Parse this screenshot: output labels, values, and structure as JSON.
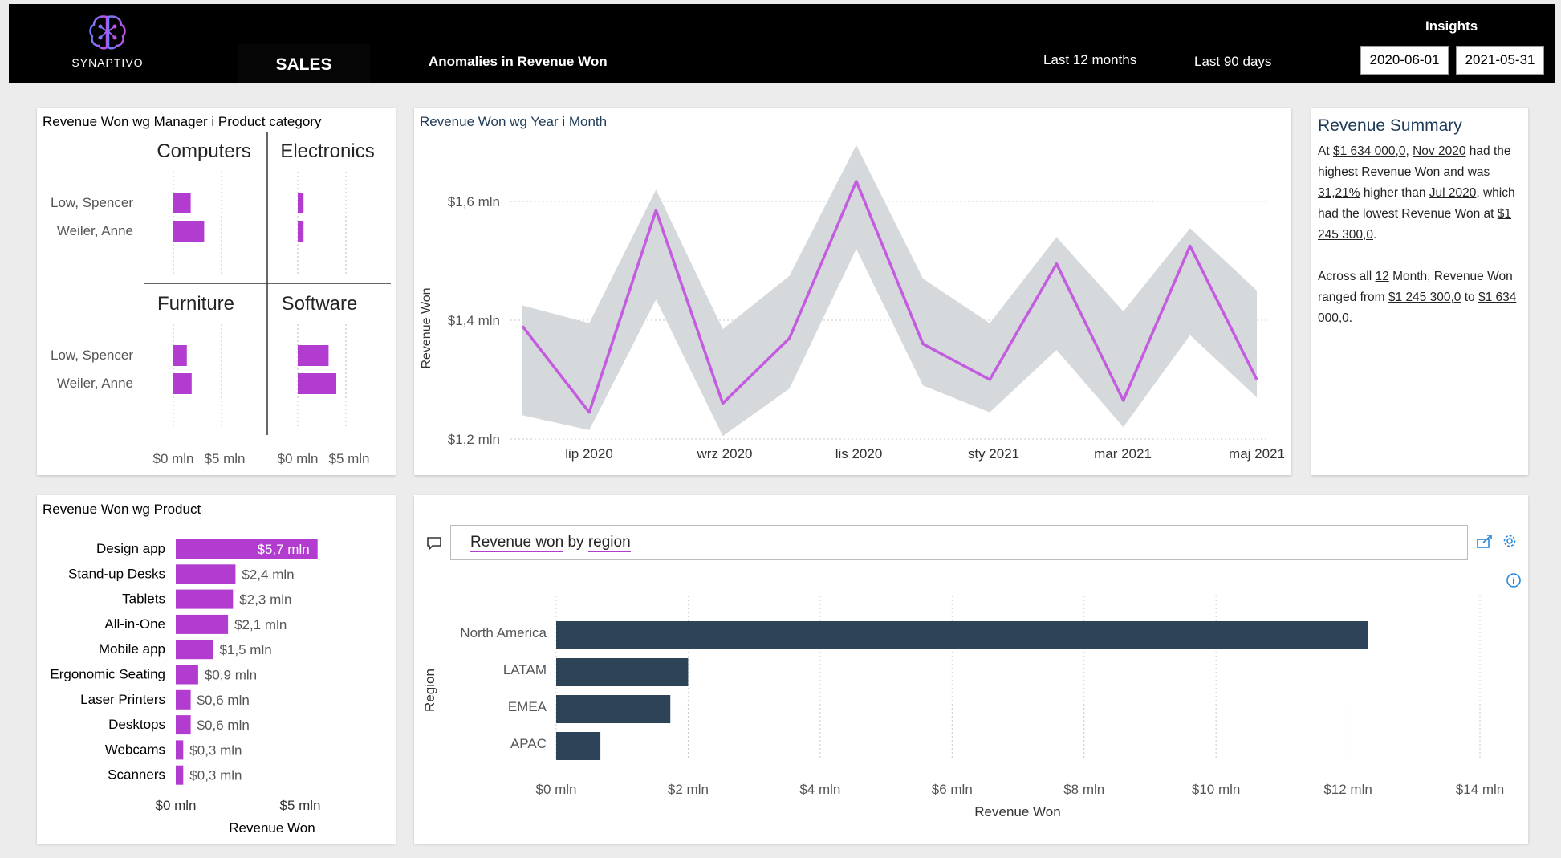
{
  "header": {
    "logo_text": "SYNAPTIVO",
    "tab_sales": "SALES",
    "tab_anomalies": "Anomalies in Revenue Won",
    "link_12m": "Last 12 months",
    "link_90d": "Last 90 days",
    "insights": "Insights",
    "date_from": "2020-06-01",
    "date_to": "2021-05-31"
  },
  "manager_panel": {
    "title": "Revenue Won wg Manager i Product category",
    "categories": [
      "Computers",
      "Electronics",
      "Furniture",
      "Software"
    ],
    "managers": [
      "Low, Spencer",
      "Weiler, Anne"
    ],
    "axis_ticks": [
      "$0 mln",
      "$5 mln"
    ]
  },
  "line_panel": {
    "title": "Revenue Won wg Year i Month",
    "ylabel": "Revenue Won",
    "y_ticks": [
      "$1,6 mln",
      "$1,4 mln",
      "$1,2 mln"
    ],
    "x_ticks": [
      "lip 2020",
      "wrz 2020",
      "lis 2020",
      "sty 2021",
      "mar 2021",
      "maj 2021"
    ]
  },
  "summary": {
    "title": "Revenue Summary",
    "at": "At",
    "max_value": "$1 634 000,0",
    "max_month": "Nov 2020",
    "had_highest": "had the highest Revenue Won and was",
    "pct": "31,21%",
    "higher_than": "higher than",
    "min_month": "Jul 2020",
    "which_had": ", which had the lowest Revenue Won at",
    "min_value": "$1 245 300,0",
    "across_all": "Across all",
    "count": "12",
    "month_ranged": "Month, Revenue Won ranged from",
    "range_from": "$1 245 300,0",
    "to": "to",
    "range_to": "$1 634 000,0"
  },
  "product_panel": {
    "title": "Revenue Won wg Product",
    "xlabel": "Revenue Won",
    "axis_ticks": [
      "$0 mln",
      "$5 mln"
    ]
  },
  "qa_panel": {
    "query_word1": "Revenue won",
    "query_word2": "by",
    "query_word3": "region",
    "ylabel": "Region",
    "xlabel": "Revenue Won"
  },
  "colors": {
    "accent": "#b23ccf",
    "line": "#c45ce0",
    "band": "#d6d9dc",
    "bar_dark": "#2d4358"
  },
  "chart_data": [
    {
      "type": "bar",
      "title": "Revenue Won wg Manager i Product category",
      "facets": [
        {
          "category": "Computers",
          "values": {
            "Low, Spencer": 1.8,
            "Weiler, Anne": 3.2
          }
        },
        {
          "category": "Electronics",
          "values": {
            "Low, Spencer": 0.6,
            "Weiler, Anne": 0.6
          }
        },
        {
          "category": "Furniture",
          "values": {
            "Low, Spencer": 1.4,
            "Weiler, Anne": 1.9
          }
        },
        {
          "category": "Software",
          "values": {
            "Low, Spencer": 3.2,
            "Weiler, Anne": 4.0
          }
        }
      ],
      "xlim": [
        0,
        6
      ]
    },
    {
      "type": "line",
      "title": "Revenue Won wg Year i Month",
      "ylabel": "Revenue Won",
      "x": [
        "2020-06",
        "2020-07",
        "2020-08",
        "2020-09",
        "2020-10",
        "2020-11",
        "2020-12",
        "2021-01",
        "2021-02",
        "2021-03",
        "2021-04",
        "2021-05"
      ],
      "values": [
        1.39,
        1.245,
        1.585,
        1.26,
        1.37,
        1.634,
        1.36,
        1.3,
        1.495,
        1.265,
        1.525,
        1.3
      ],
      "band_low": [
        1.24,
        1.215,
        1.435,
        1.205,
        1.285,
        1.52,
        1.29,
        1.245,
        1.35,
        1.22,
        1.375,
        1.27
      ],
      "band_high": [
        1.425,
        1.395,
        1.62,
        1.385,
        1.475,
        1.695,
        1.47,
        1.395,
        1.54,
        1.415,
        1.555,
        1.45
      ],
      "ylim": [
        1.2,
        1.7
      ],
      "y_unit": "$ mln"
    },
    {
      "type": "bar",
      "title": "Revenue Won wg Product",
      "xlabel": "Revenue Won",
      "categories": [
        "Design app",
        "Stand-up Desks",
        "Tablets",
        "All-in-One",
        "Mobile app",
        "Ergonomic Seating",
        "Laser Printers",
        "Desktops",
        "Webcams",
        "Scanners"
      ],
      "values": [
        5.7,
        2.4,
        2.3,
        2.1,
        1.5,
        0.9,
        0.6,
        0.6,
        0.3,
        0.3
      ],
      "labels": [
        "$5,7 mln",
        "$2,4 mln",
        "$2,3 mln",
        "$2,1 mln",
        "$1,5 mln",
        "$0,9 mln",
        "$0,6 mln",
        "$0,6 mln",
        "$0,3 mln",
        "$0,3 mln"
      ],
      "xlim": [
        0,
        6
      ]
    },
    {
      "type": "bar",
      "title": "Revenue won by region",
      "xlabel": "Revenue Won",
      "ylabel": "Region",
      "categories": [
        "North America",
        "LATAM",
        "EMEA",
        "APAC"
      ],
      "values": [
        12.3,
        2.0,
        1.73,
        0.67
      ],
      "x_ticks": [
        "$0 mln",
        "$2 mln",
        "$4 mln",
        "$6 mln",
        "$8 mln",
        "$10 mln",
        "$12 mln",
        "$14 mln"
      ],
      "xlim": [
        0,
        14
      ]
    }
  ]
}
